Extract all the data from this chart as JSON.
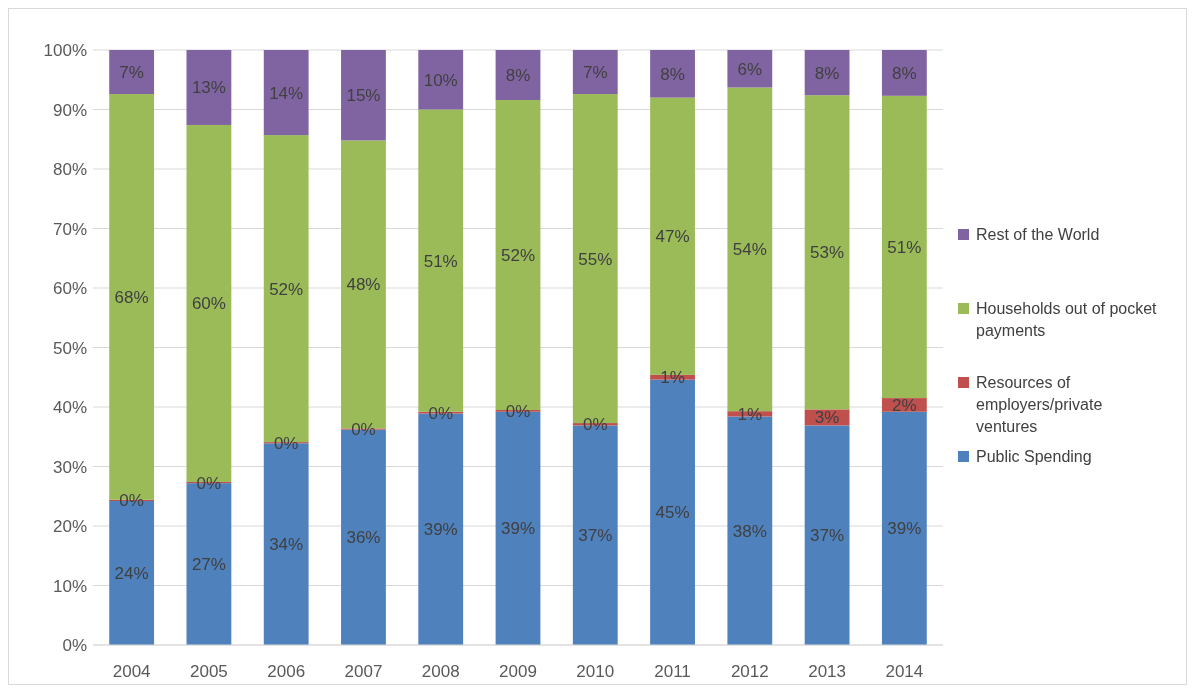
{
  "chart_data": {
    "type": "bar",
    "stacked": true,
    "categories": [
      "2004",
      "2005",
      "2006",
      "2007",
      "2008",
      "2009",
      "2010",
      "2011",
      "2012",
      "2013",
      "2014"
    ],
    "series": [
      {
        "name": "Public Spending",
        "color": "#4f81bd",
        "values": [
          24.2,
          27.2,
          33.9,
          36.2,
          38.9,
          39.2,
          36.9,
          44.6,
          38.4,
          36.9,
          39.2
        ],
        "value_labels": [
          "24%",
          "27%",
          "34%",
          "36%",
          "39%",
          "39%",
          "37%",
          "45%",
          "38%",
          "37%",
          "39%"
        ]
      },
      {
        "name": "Resources of employers/private ventures",
        "color": "#c0504d",
        "values": [
          0.2,
          0.2,
          0.2,
          0.2,
          0.3,
          0.3,
          0.4,
          0.8,
          0.9,
          2.7,
          2.3
        ],
        "value_labels": [
          "0%",
          "0%",
          "0%",
          "0%",
          "0%",
          "0%",
          "0%",
          "1%",
          "1%",
          "3%",
          "2%"
        ]
      },
      {
        "name": "Households out of pocket payments",
        "color": "#9bbb59",
        "values": [
          68.2,
          60.0,
          51.6,
          48.4,
          50.8,
          52.1,
          55.3,
          46.6,
          54.4,
          52.8,
          50.8
        ],
        "value_labels": [
          "68%",
          "60%",
          "52%",
          "48%",
          "51%",
          "52%",
          "55%",
          "47%",
          "54%",
          "53%",
          "51%"
        ]
      },
      {
        "name": "Rest of the World",
        "color": "#8064a2",
        "values": [
          7.4,
          12.6,
          14.3,
          15.2,
          10.0,
          8.4,
          7.4,
          8.0,
          6.3,
          7.6,
          7.7
        ],
        "value_labels": [
          "7%",
          "13%",
          "14%",
          "15%",
          "10%",
          "8%",
          "7%",
          "8%",
          "6%",
          "8%",
          "8%"
        ]
      }
    ],
    "ylim": [
      0,
      100
    ],
    "yticks": [
      {
        "value": 0,
        "label": "0%"
      },
      {
        "value": 10,
        "label": "10%"
      },
      {
        "value": 20,
        "label": "20%"
      },
      {
        "value": 30,
        "label": "30%"
      },
      {
        "value": 40,
        "label": "40%"
      },
      {
        "value": 50,
        "label": "50%"
      },
      {
        "value": 60,
        "label": "60%"
      },
      {
        "value": 70,
        "label": "70%"
      },
      {
        "value": 80,
        "label": "80%"
      },
      {
        "value": 90,
        "label": "90%"
      },
      {
        "value": 100,
        "label": "100%"
      }
    ],
    "grid": "y",
    "legend": "right"
  }
}
